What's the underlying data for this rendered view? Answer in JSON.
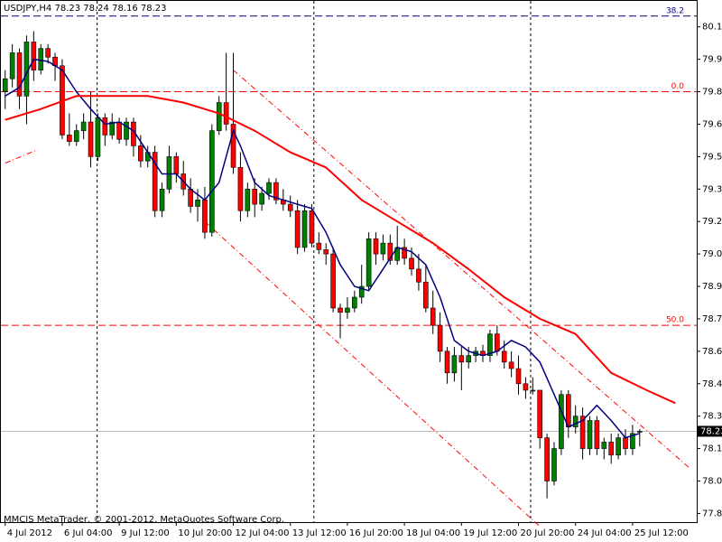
{
  "chart_data": {
    "type": "candlestick",
    "title": "USDJPY,H4 78.23 78.24 78.16 78.23",
    "footer": "MMCIS MetaTrader, © 2001-2012, MetaQuotes Software Corp.",
    "up_color": "#008000",
    "down_color": "#ff0000",
    "ylim": [
      77.81,
      80.22
    ],
    "xlim": [
      -0.6,
      97
    ],
    "yticks": [
      {
        "value": 80.1,
        "label": "80.10"
      },
      79.95,
      {
        "value": 79.8,
        "label": "79.80"
      },
      79.65,
      {
        "value": 79.5,
        "label": "79.50"
      },
      79.35,
      {
        "value": 79.2,
        "label": "79.20"
      },
      79.05,
      {
        "value": 78.9,
        "label": "78.90"
      },
      78.75,
      {
        "value": 78.6,
        "label": "78.60"
      },
      78.45,
      {
        "value": 78.3,
        "label": "78.30"
      },
      78.15,
      {
        "value": 78.0,
        "label": "78.00"
      },
      77.85
    ],
    "xticks": [
      {
        "value": 0,
        "label": "4 Jul 2012"
      },
      {
        "value": 8,
        "label": "6 Jul 04:00"
      },
      {
        "value": 16,
        "label": "9 Jul 12:00"
      },
      {
        "value": 24,
        "label": "10 Jul 20:00"
      },
      {
        "value": 32,
        "label": "12 Jul 04:00"
      },
      {
        "value": 40,
        "label": "13 Jul 12:00"
      },
      {
        "value": 48,
        "label": "16 Jul 20:00"
      },
      {
        "value": 56,
        "label": "18 Jul 04:00"
      },
      {
        "value": 64,
        "label": "19 Jul 12:00"
      },
      {
        "value": 72,
        "label": "20 Jul 20:00"
      },
      {
        "value": 80,
        "label": "24 Jul 04:00"
      },
      {
        "value": 88,
        "label": "25 Jul 12:00"
      }
    ],
    "open": [
      79.8,
      79.86,
      79.98,
      79.78,
      80.03,
      79.9,
      80.0,
      79.96,
      79.92,
      79.6,
      79.57,
      79.62,
      79.66,
      79.5,
      79.68,
      79.6,
      79.66,
      79.58,
      79.66,
      79.55,
      79.48,
      79.52,
      79.25,
      79.35,
      79.5,
      79.42,
      79.35,
      79.27,
      79.3,
      79.15,
      79.62,
      79.75,
      79.65,
      79.45,
      79.25,
      79.35,
      79.28,
      79.33,
      79.38,
      79.3,
      79.28,
      79.25,
      79.08,
      79.25,
      79.1,
      79.07,
      79.05,
      78.8,
      78.78,
      78.8,
      78.85,
      78.9,
      79.12,
      79.05,
      79.1,
      79.02,
      79.08,
      79.03,
      78.98,
      78.92,
      78.8,
      78.72,
      78.6,
      78.5,
      78.58,
      78.55,
      78.58,
      78.6,
      78.58,
      78.68,
      78.6,
      78.55,
      78.52,
      78.45,
      78.42,
      78.42,
      78.2,
      78.0,
      78.15,
      78.4,
      78.25,
      78.3,
      78.15,
      78.28,
      78.15,
      78.18,
      78.12,
      78.2,
      78.15,
      78.23
    ],
    "high": [
      79.9,
      80.02,
      80.0,
      80.06,
      80.08,
      80.02,
      80.02,
      79.98,
      79.95,
      79.7,
      79.65,
      79.7,
      79.8,
      79.7,
      79.7,
      79.7,
      79.68,
      79.68,
      79.68,
      79.6,
      79.55,
      79.55,
      79.38,
      79.55,
      79.52,
      79.48,
      79.4,
      79.35,
      79.36,
      79.65,
      79.78,
      79.98,
      79.98,
      79.52,
      79.38,
      79.4,
      79.36,
      79.4,
      79.4,
      79.35,
      79.32,
      79.3,
      79.28,
      79.28,
      79.15,
      79.1,
      79.08,
      78.82,
      78.85,
      78.88,
      79.0,
      79.15,
      79.15,
      79.14,
      79.14,
      79.18,
      79.12,
      79.08,
      79.05,
      79.0,
      78.88,
      78.78,
      78.62,
      78.62,
      78.62,
      78.62,
      78.62,
      78.63,
      78.7,
      78.72,
      78.65,
      78.6,
      78.58,
      78.48,
      78.48,
      78.42,
      78.22,
      78.18,
      78.42,
      78.42,
      78.35,
      78.34,
      78.3,
      78.3,
      78.2,
      78.22,
      78.22,
      78.24,
      78.26,
      78.24
    ],
    "low": [
      79.72,
      79.82,
      79.72,
      79.65,
      79.85,
      79.88,
      79.93,
      79.85,
      79.58,
      79.55,
      79.55,
      79.58,
      79.45,
      79.48,
      79.55,
      79.58,
      79.56,
      79.55,
      79.5,
      79.45,
      79.45,
      79.22,
      79.22,
      79.33,
      79.38,
      79.32,
      79.24,
      79.2,
      79.12,
      79.13,
      79.6,
      79.62,
      79.42,
      79.2,
      79.22,
      79.22,
      79.25,
      79.3,
      79.28,
      79.25,
      79.22,
      79.05,
      79.06,
      79.08,
      79.05,
      79.0,
      78.78,
      78.66,
      78.75,
      78.78,
      78.82,
      78.88,
      79.0,
      79.02,
      79.0,
      79.0,
      79.0,
      78.95,
      78.88,
      78.78,
      78.68,
      78.55,
      78.45,
      78.46,
      78.42,
      78.52,
      78.55,
      78.55,
      78.55,
      78.58,
      78.52,
      78.48,
      78.4,
      78.38,
      78.4,
      78.15,
      77.92,
      77.98,
      78.12,
      78.2,
      78.22,
      78.1,
      78.12,
      78.12,
      78.1,
      78.08,
      78.1,
      78.12,
      78.12,
      78.16
    ],
    "close": [
      79.86,
      79.98,
      79.78,
      80.03,
      79.9,
      80.0,
      79.96,
      79.92,
      79.6,
      79.57,
      79.62,
      79.66,
      79.5,
      79.68,
      79.6,
      79.66,
      79.58,
      79.66,
      79.55,
      79.48,
      79.52,
      79.25,
      79.35,
      79.5,
      79.42,
      79.35,
      79.27,
      79.3,
      79.15,
      79.62,
      79.75,
      79.65,
      79.45,
      79.25,
      79.35,
      79.28,
      79.33,
      79.38,
      79.3,
      79.28,
      79.25,
      79.08,
      79.25,
      79.1,
      79.07,
      79.05,
      78.8,
      78.78,
      78.8,
      78.85,
      78.9,
      79.12,
      79.05,
      79.1,
      79.02,
      79.08,
      79.03,
      78.98,
      78.92,
      78.8,
      78.72,
      78.6,
      78.5,
      78.58,
      78.55,
      78.58,
      78.6,
      78.58,
      78.68,
      78.6,
      78.55,
      78.52,
      78.45,
      78.42,
      78.42,
      78.2,
      78.0,
      78.15,
      78.4,
      78.25,
      78.3,
      78.15,
      78.28,
      78.15,
      78.18,
      78.12,
      78.2,
      78.15,
      78.22,
      78.23
    ],
    "last_price": 78.23,
    "series": [
      {
        "color": "#000080",
        "x": [
          0,
          2,
          4,
          6,
          8,
          10,
          12,
          14,
          16,
          18,
          20,
          22,
          24,
          26,
          28,
          30,
          32,
          33,
          35,
          37,
          39,
          41,
          43,
          45,
          47,
          49,
          51,
          53,
          55,
          57,
          59,
          61,
          63,
          65,
          67,
          69,
          71,
          73,
          75,
          77,
          79,
          81,
          83,
          85,
          87,
          89
        ],
        "values": [
          79.78,
          79.82,
          79.95,
          79.94,
          79.9,
          79.8,
          79.72,
          79.65,
          79.66,
          79.62,
          79.52,
          79.42,
          79.42,
          79.35,
          79.3,
          79.38,
          79.62,
          79.55,
          79.38,
          79.32,
          79.3,
          79.28,
          79.26,
          79.15,
          79.0,
          78.9,
          78.88,
          78.98,
          79.08,
          79.06,
          79.0,
          78.85,
          78.65,
          78.6,
          78.58,
          78.6,
          78.65,
          78.62,
          78.55,
          78.4,
          78.25,
          78.28,
          78.35,
          78.28,
          78.2,
          78.22
        ]
      },
      {
        "color": "#ff0000",
        "x": [
          0,
          5,
          10,
          15,
          20,
          25,
          30,
          35,
          40,
          45,
          50,
          55,
          60,
          65,
          70,
          75,
          80,
          85,
          90,
          94
        ],
        "values": [
          79.67,
          79.72,
          79.78,
          79.78,
          79.78,
          79.75,
          79.7,
          79.62,
          79.52,
          79.45,
          79.3,
          79.2,
          79.1,
          78.98,
          78.85,
          78.75,
          78.68,
          78.5,
          78.42,
          78.36
        ]
      }
    ],
    "levels": [
      {
        "label": "38.2",
        "value": 80.15,
        "color": "#000080"
      },
      {
        "label": "0.0",
        "value": 79.8,
        "color": "#ff0000"
      },
      {
        "label": "50.0",
        "value": 78.72,
        "color": "#ff0000"
      }
    ],
    "trendlines": [
      {
        "x": [
          32,
          96
        ],
        "values": [
          79.9,
          78.06
        ],
        "color": "#ff0000"
      },
      {
        "x": [
          28,
          75
        ],
        "values": [
          79.2,
          77.79
        ],
        "color": "#ff0000"
      },
      {
        "x": [
          0,
          4.4
        ],
        "values": [
          79.47,
          79.53
        ],
        "color": "#ff0000"
      }
    ]
  }
}
